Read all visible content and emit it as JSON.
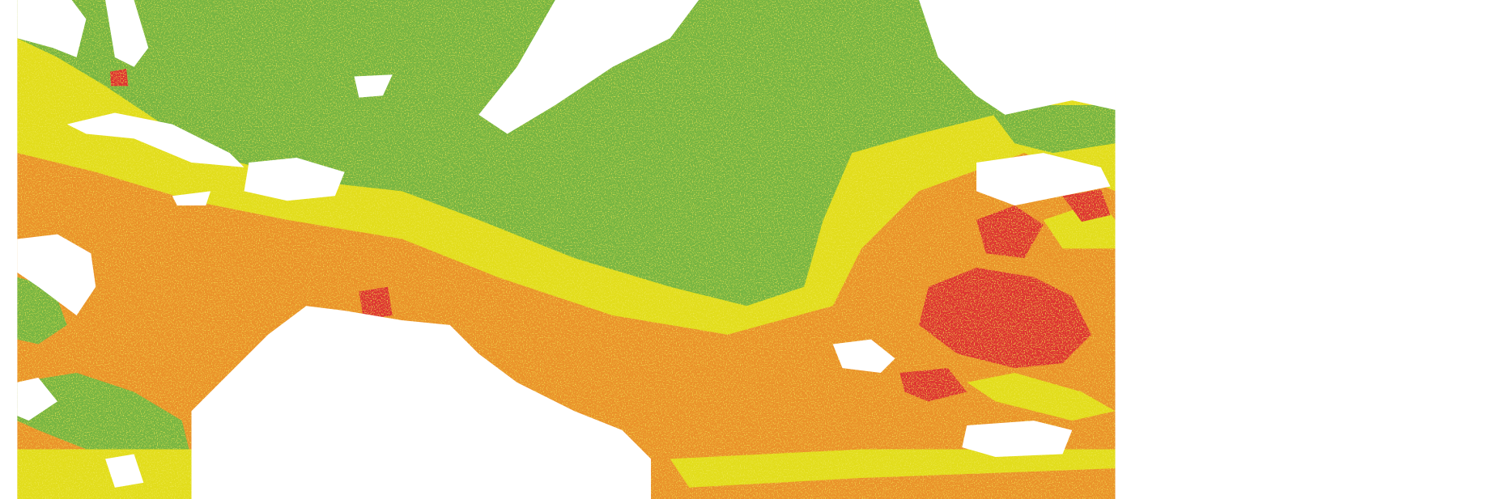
{
  "map": {
    "classes": [
      {
        "color": "#76b543"
      },
      {
        "color": "#e2dd1a"
      },
      {
        "color": "#ea922b"
      },
      {
        "color": "#de3232"
      }
    ],
    "background": "#ffffff",
    "nodata_color": "#ffffff"
  }
}
